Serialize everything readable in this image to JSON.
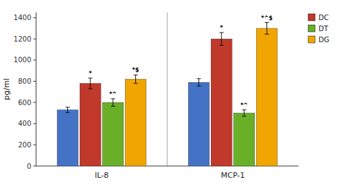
{
  "chart_data": {
    "type": "bar",
    "categories": [
      "IL-8",
      "MCP-1"
    ],
    "series": [
      {
        "color": "#4472c4",
        "values": [
          530,
          790
        ],
        "errors": [
          25,
          35
        ]
      },
      {
        "name": "DC",
        "color": "#c0392b",
        "values": [
          780,
          1200
        ],
        "errors": [
          50,
          60
        ],
        "annotations": [
          "*",
          "*"
        ]
      },
      {
        "name": "DT",
        "color": "#6aaf28",
        "values": [
          600,
          500
        ],
        "errors": [
          35,
          30
        ],
        "annotations": [
          "*^",
          "*^"
        ]
      },
      {
        "name": "DG",
        "color": "#f0a500",
        "values": [
          820,
          1300
        ],
        "errors": [
          40,
          55
        ],
        "annotations": [
          "*$",
          "*^$"
        ]
      }
    ],
    "ylabel": "pg/ml",
    "ylim": [
      0,
      1450
    ],
    "yticks": [
      0,
      200,
      400,
      600,
      800,
      1000,
      1200,
      1400
    ],
    "grid": false,
    "legend": "upper right"
  }
}
